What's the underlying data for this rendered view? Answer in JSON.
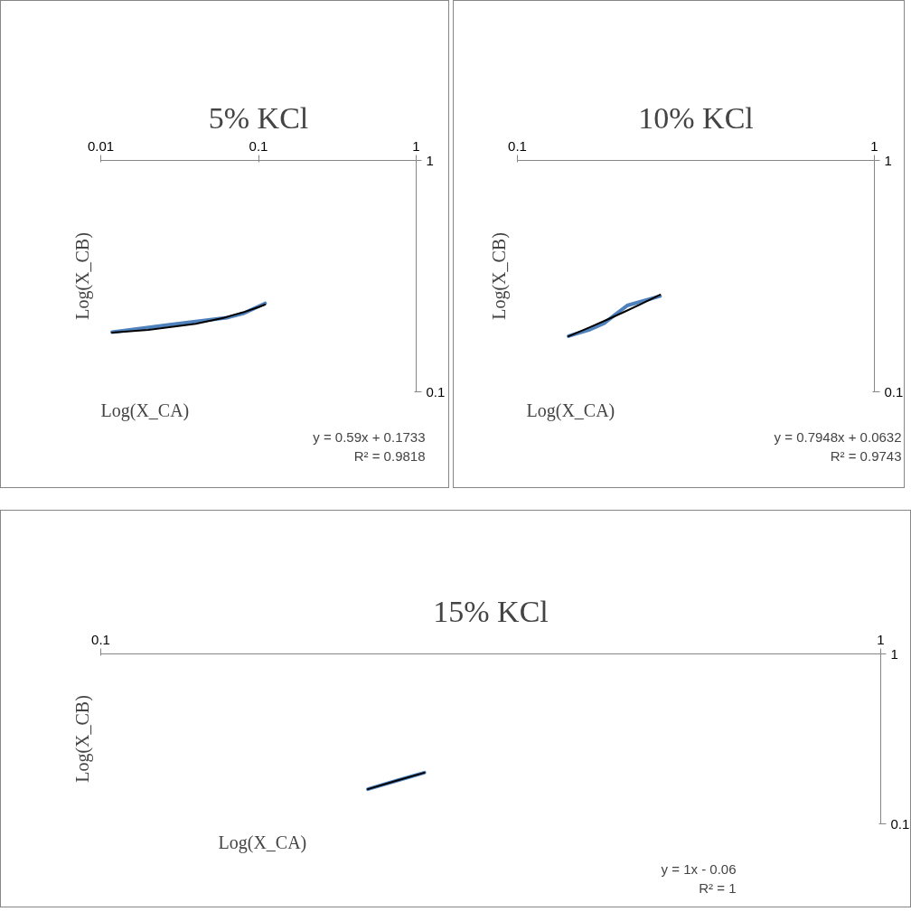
{
  "chart_data": [
    {
      "type": "line",
      "title": "5% KCl",
      "xlabel": "Log(X_CA)",
      "ylabel": "Log(X_CB)",
      "log": "xy",
      "xlim": [
        0.01,
        1
      ],
      "ylim": [
        0.1,
        1
      ],
      "xticks": [
        0.01,
        0.1,
        1
      ],
      "yticks": [
        0.1,
        1
      ],
      "grid": false,
      "marker": "none",
      "series": [
        {
          "color": "#4f81bd",
          "x": [
            0.0118,
            0.026,
            0.063,
            0.08,
            0.11
          ],
          "values": [
            0.181,
            0.194,
            0.209,
            0.218,
            0.241
          ]
        },
        {
          "color": "#000000",
          "x": [
            0.0118,
            0.02,
            0.04,
            0.06,
            0.08,
            0.1,
            0.11
          ],
          "values": [
            0.1803,
            0.1851,
            0.1969,
            0.2087,
            0.2205,
            0.2323,
            0.2382
          ]
        }
      ],
      "annotations": [
        "y = 0.59x + 0.1733",
        "R² = 0.9818"
      ]
    },
    {
      "type": "line",
      "title": "10% KCl",
      "xlabel": "Log(X_CA)",
      "ylabel": "Log(X_CB)",
      "log": "xy",
      "xlim": [
        0.1,
        1
      ],
      "ylim": [
        0.1,
        1
      ],
      "xticks": [
        0.1,
        1
      ],
      "yticks": [
        0.1,
        1
      ],
      "grid": false,
      "marker": "none",
      "series": [
        {
          "color": "#4f81bd",
          "x": [
            0.139,
            0.16,
            0.175,
            0.1875,
            0.203,
            0.225,
            0.251
          ],
          "values": [
            0.174,
            0.186,
            0.198,
            0.215,
            0.236,
            0.247,
            0.259
          ]
        },
        {
          "color": "#000000",
          "x": [
            0.139,
            0.16,
            0.18,
            0.2,
            0.22,
            0.251
          ],
          "values": [
            0.1737,
            0.1904,
            0.2063,
            0.2222,
            0.2381,
            0.2627
          ]
        }
      ],
      "annotations": [
        "y = 0.7948x + 0.0632",
        "R² = 0.9743"
      ]
    },
    {
      "type": "line",
      "title": "15% KCl",
      "xlabel": "Log(X_CA)",
      "ylabel": "Log(X_CB)",
      "log": "xy",
      "xlim": [
        0.1,
        1
      ],
      "ylim": [
        0.1,
        1
      ],
      "xticks": [
        0.1,
        1
      ],
      "yticks": [
        0.1,
        1
      ],
      "grid": false,
      "marker": "none",
      "series": [
        {
          "color": "#4f81bd",
          "x": [
            0.22,
            0.24,
            0.26
          ],
          "values": [
            0.16,
            0.18,
            0.2
          ]
        },
        {
          "color": "#000000",
          "x": [
            0.22,
            0.24,
            0.26
          ],
          "values": [
            0.16,
            0.18,
            0.2
          ]
        }
      ],
      "annotations": [
        "y = 1x - 0.06",
        "R² = 1"
      ]
    }
  ]
}
